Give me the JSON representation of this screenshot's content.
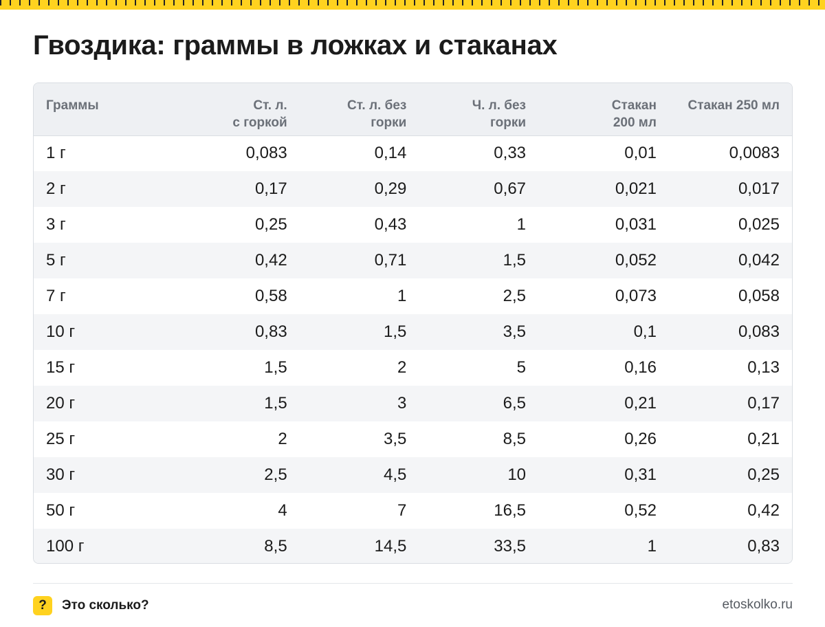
{
  "title": "Гвоздика: граммы в ложках и стаканах",
  "table": {
    "headers": [
      [
        "Граммы",
        ""
      ],
      [
        "Ст. л.",
        "с горкой"
      ],
      [
        "Ст. л. без",
        "горки"
      ],
      [
        "Ч. л. без",
        "горки"
      ],
      [
        "Стакан",
        "200 мл"
      ],
      [
        "Стакан 250 мл",
        ""
      ]
    ],
    "rows": [
      [
        "1 г",
        "0,083",
        "0,14",
        "0,33",
        "0,01",
        "0,0083"
      ],
      [
        "2 г",
        "0,17",
        "0,29",
        "0,67",
        "0,021",
        "0,017"
      ],
      [
        "3 г",
        "0,25",
        "0,43",
        "1",
        "0,031",
        "0,025"
      ],
      [
        "5 г",
        "0,42",
        "0,71",
        "1,5",
        "0,052",
        "0,042"
      ],
      [
        "7 г",
        "0,58",
        "1",
        "2,5",
        "0,073",
        "0,058"
      ],
      [
        "10 г",
        "0,83",
        "1,5",
        "3,5",
        "0,1",
        "0,083"
      ],
      [
        "15 г",
        "1,5",
        "2",
        "5",
        "0,16",
        "0,13"
      ],
      [
        "20 г",
        "1,5",
        "3",
        "6,5",
        "0,21",
        "0,17"
      ],
      [
        "25 г",
        "2",
        "3,5",
        "8,5",
        "0,26",
        "0,21"
      ],
      [
        "30 г",
        "2,5",
        "4,5",
        "10",
        "0,31",
        "0,25"
      ],
      [
        "50 г",
        "4",
        "7",
        "16,5",
        "0,52",
        "0,42"
      ],
      [
        "100 г",
        "8,5",
        "14,5",
        "33,5",
        "1",
        "0,83"
      ]
    ]
  },
  "footer": {
    "badge": "?",
    "brand": "Это сколько?",
    "site": "etoskolko.ru"
  },
  "colors": {
    "accent": "#ffd21f",
    "header_bg": "#eef0f3",
    "stripe": "#f4f5f7"
  }
}
